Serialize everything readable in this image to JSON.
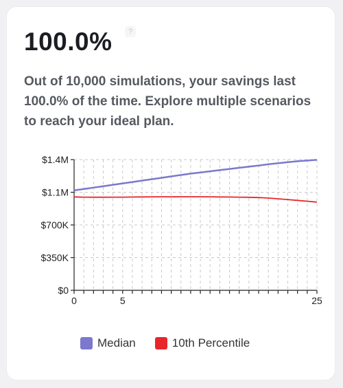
{
  "summary": {
    "percent": "100.0%",
    "help_glyph": "?",
    "description": "Out of 10,000 simulations, your savings last 100.0% of the time. Explore multiple scenarios to reach your ideal plan."
  },
  "colors": {
    "median": "#7b78cd",
    "p10": "#e8262a",
    "grid": "#c8c8c8",
    "axis": "#222222"
  },
  "chart_data": {
    "type": "line",
    "x": [
      0,
      1,
      2,
      3,
      4,
      5,
      6,
      7,
      8,
      9,
      10,
      11,
      12,
      13,
      14,
      15,
      16,
      17,
      18,
      19,
      20,
      21,
      22,
      23,
      24,
      25
    ],
    "series": [
      {
        "name": "Median",
        "values": [
          1070000,
          1085000,
          1100000,
          1115000,
          1130000,
          1145000,
          1160000,
          1175000,
          1190000,
          1205000,
          1220000,
          1235000,
          1250000,
          1262000,
          1275000,
          1288000,
          1300000,
          1312000,
          1325000,
          1337000,
          1350000,
          1362000,
          1373000,
          1382000,
          1390000,
          1397000
        ]
      },
      {
        "name": "10th Percentile",
        "values": [
          1000000,
          998000,
          997000,
          997000,
          998000,
          998000,
          999000,
          1000000,
          1001000,
          1002000,
          1001000,
          1002000,
          1002000,
          1002000,
          1001000,
          1000000,
          999000,
          998000,
          996000,
          993000,
          988000,
          980000,
          972000,
          963000,
          954000,
          945000
        ]
      }
    ],
    "xlim": [
      0,
      25
    ],
    "ylim": [
      0,
      1400000
    ],
    "x_tick_labels": [
      {
        "x": 0,
        "label": "0"
      },
      {
        "x": 5,
        "label": "5"
      },
      {
        "x": 25,
        "label": "25"
      }
    ],
    "y_tick_labels": [
      {
        "y": 0,
        "label": "$0"
      },
      {
        "y": 350000,
        "label": "$350K"
      },
      {
        "y": 700000,
        "label": "$700K"
      },
      {
        "y": 1050000,
        "label": "$1.1M"
      },
      {
        "y": 1400000,
        "label": "$1.4M"
      }
    ],
    "grid": true,
    "legend": "bottom"
  }
}
